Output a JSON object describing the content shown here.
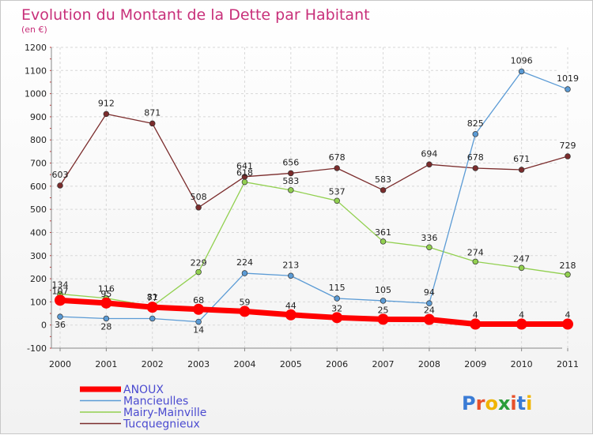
{
  "chart_data": {
    "type": "line",
    "title": "Evolution du Montant de la Dette par Habitant",
    "subtitle": "(en €)",
    "x": [
      "2000",
      "2001",
      "2002",
      "2003",
      "2004",
      "2005",
      "2006",
      "2007",
      "2008",
      "2009",
      "2010",
      "2011"
    ],
    "ylim": [
      -100,
      1200
    ],
    "yticks": [
      -100,
      0,
      100,
      200,
      300,
      400,
      500,
      600,
      700,
      800,
      900,
      1000,
      1100,
      1200
    ],
    "grid": true,
    "legend_position": "bottom-left",
    "series": [
      {
        "name": "ANOUX",
        "color": "#ff0000",
        "values": [
          107,
          95,
          77,
          68,
          59,
          44,
          32,
          25,
          24,
          4,
          4,
          4
        ],
        "labels": [
          "107",
          "95",
          "77",
          "68",
          "59",
          "44",
          "32",
          "25",
          "24",
          "4",
          "4",
          "4"
        ]
      },
      {
        "name": "Mancieulles",
        "color": "#5b9bd5",
        "values": [
          36,
          28,
          28,
          14,
          224,
          213,
          115,
          105,
          94,
          825,
          1096,
          1019
        ],
        "labels": [
          "36",
          "28",
          "",
          "14",
          "224",
          "213",
          "115",
          "105",
          "94",
          "825",
          "1096",
          "1019"
        ]
      },
      {
        "name": "Mairy-Mainville",
        "color": "#92d050",
        "values": [
          134,
          116,
          81,
          229,
          618,
          583,
          537,
          361,
          336,
          274,
          247,
          218
        ],
        "labels": [
          "134",
          "116",
          "81",
          "229",
          "618",
          "583",
          "537",
          "361",
          "336",
          "274",
          "247",
          "218"
        ]
      },
      {
        "name": "Tucquegnieux",
        "color": "#7b2c2c",
        "values": [
          603,
          912,
          871,
          508,
          641,
          656,
          678,
          583,
          694,
          678,
          671,
          729
        ],
        "labels": [
          "603",
          "912",
          "871",
          "508",
          "641",
          "656",
          "678",
          "583",
          "694",
          "678",
          "671",
          "729"
        ]
      }
    ]
  },
  "logo": {
    "text": "Proxiti"
  }
}
